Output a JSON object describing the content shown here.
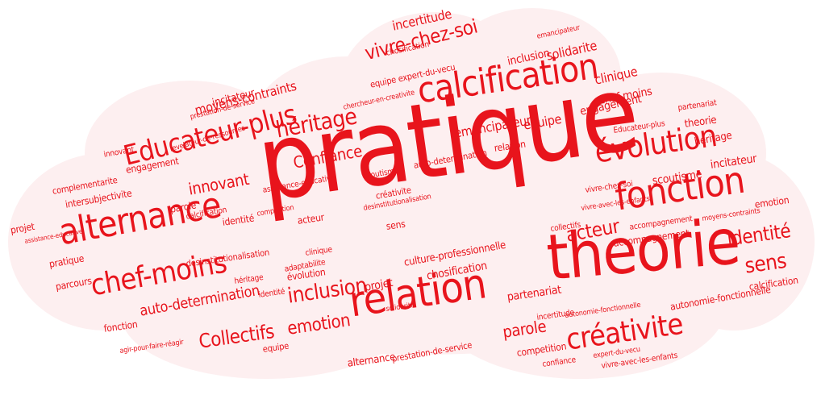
{
  "colors": {
    "background": "#ffffff",
    "cloud": "#fdeff0",
    "red": "#e8141c",
    "dark_red": "#b8252b",
    "light_red": "#f04a52"
  },
  "words": {
    "pratique": "pratique",
    "theorie": "theorie",
    "relation": "relation",
    "calcification": "calcification",
    "alternance": "alternance",
    "fonction": "fonction",
    "evolution": "évolution",
    "educateur_plus": "Educateur-plus",
    "chef_moins": "chef-moins",
    "heritage": "héritage",
    "creativite": "créativite",
    "vivre_chez_soi": "vivre-chez-soi",
    "inclusion": "inclusion",
    "identite": "identité",
    "sens": "sens",
    "acteur": "acteur",
    "collectifs": "Collectifs",
    "emotion": "emotion",
    "innovant": "innovant",
    "confiance": "Confiance",
    "equipe": "equipe",
    "emancipateur": "emancipateur",
    "moyens_contraints": "moyens-contraints",
    "auto_determination": "auto-determination",
    "engagement": "engagement",
    "incertitude": "incertitude",
    "solidarite": "solidarite",
    "clinique": "clinique",
    "parole": "parole",
    "partenariat": "partenariat",
    "incitateur": "incitateur",
    "scoutisme": "scoutisme",
    "accompagnement": "accompagnement",
    "autonomie_fonctionnelle": "autonomie-fonctionnelle",
    "culture_professionnelle": "culture-professionnelle",
    "chosification": "chosification",
    "projet": "projet",
    "competition": "competition",
    "calcification_small": "calcification",
    "intersubjectivite": "intersubjectivite",
    "parcours": "parcours",
    "complementarite": "complementarite",
    "desinstitutionalisation": "desinstitutionalisation",
    "prestation_de_service": "prestation-de-service",
    "vivre_avec_les_enfants": "vivre-avec-les-enfants",
    "equipe_expert": "equipe expert-du-vecu",
    "chercheur": "chercheur-en-creativite",
    "assistance_educative": "assistance-educative",
    "relation_small": "relation",
    "theorie_small": "theorie",
    "pratique_small": "pratique",
    "adaptabilite": "adaptabilite",
    "revelateur": "revelateur-de-ressources",
    "heritage_small": "héritage",
    "identite_small": "identité",
    "fonction_small": "fonction",
    "engagement_small": "engagement",
    "evolution_small": "évolution",
    "incertitude_small": "incertitude",
    "creativite_small": "créativite",
    "chef_moins_small": "chef-moins",
    "alternance_small": "alternance",
    "emotion_small": "emotion",
    "confiance_small": "confiance",
    "acteur_small": "acteur",
    "sens_small": "sens",
    "collectifs_small": "collectifs",
    "inclusion_small": "inclusion",
    "parole_small": "parole",
    "projet_small": "projet",
    "clinique_small": "clinique",
    "educateur_small": "Educateur-plus",
    "partenariat_small": "partenariat",
    "solidarite_small": "solidarite",
    "vivre_small": "vivre-chez-soi",
    "culture_small": "culture-professionnelle",
    "equipe_small": "equipe",
    "innovant_small": "innovant",
    "scoutisme_small": "scoutisme",
    "incitateur_small": "incitateur",
    "calcification_tiny": "calcification",
    "accompagnement_small": "accompagnement",
    "chosification_small": "chosification",
    "competition_small": "competition",
    "autonomie_small": "autonomie-fonctionnelle",
    "desinst_small": "desinstitutionalisation",
    "moyens_small": "moyens-contraints",
    "auto_det_small": "auto-determination",
    "emancipateur_small": "emancipateur",
    "heritage_tiny": "héritage",
    "identite_tiny": "identité",
    "prestation_small": "prestation-de-service",
    "vivre_avec_small": "vivre-avec-les-enfants",
    "assistance_small": "assistance-educative",
    "agir_pour_faire_reagir": "agir-pour-faire-réagir",
    "expert_du_vecu": "expert-du-vecu"
  }
}
